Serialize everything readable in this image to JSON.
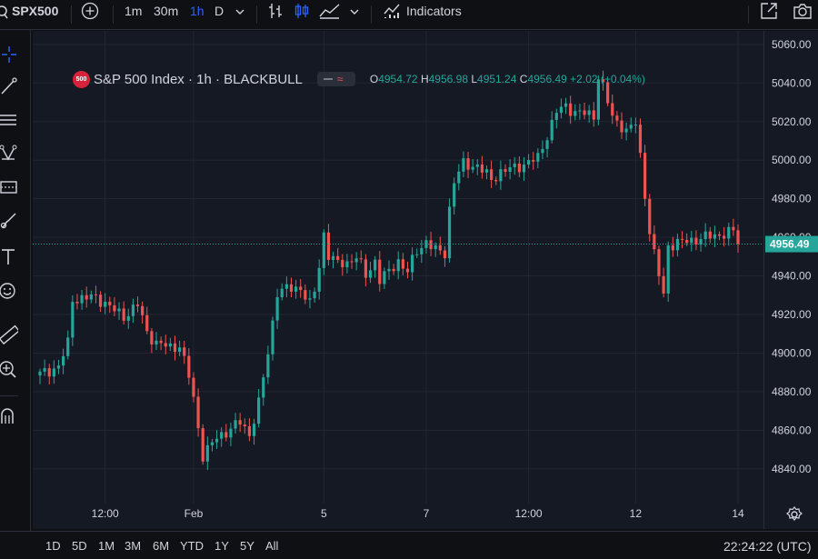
{
  "toolbar": {
    "symbol": "SPX500",
    "intervals": [
      "1m",
      "30m",
      "1h",
      "D"
    ],
    "active_interval": "1h",
    "indicators_label": "Indicators"
  },
  "legend": {
    "instrument": "S&P 500 Index · 1h · BLACKBULL",
    "badge": "500",
    "o_label": "O",
    "o_value": "4954.72",
    "h_label": "H",
    "h_value": "4956.98",
    "l_label": "L",
    "l_value": "4951.24",
    "c_label": "C",
    "c_value": "4956.49",
    "change": "+2.02 (+0.04%)"
  },
  "colors": {
    "up": "#26a69a",
    "down": "#ef5350",
    "background": "#151924",
    "grid": "#222633",
    "active_interval": "#2962ff",
    "last_price_bg": "#26a69a"
  },
  "range_buttons": [
    "1D",
    "5D",
    "1M",
    "3M",
    "6M",
    "YTD",
    "1Y",
    "5Y",
    "All"
  ],
  "clock": "22:24:22 (UTC)",
  "sidebar_icons": [
    "crosshair-icon",
    "trend-line-icon",
    "fib-icon",
    "pattern-icon",
    "forecast-icon",
    "brush-icon",
    "text-icon",
    "emoji-icon",
    "ruler-icon",
    "zoom-icon",
    "magnet-icon"
  ],
  "chart_data": {
    "type": "candlestick",
    "y_ticks": [
      "5060.00",
      "5040.00",
      "5020.00",
      "5000.00",
      "4980.00",
      "4960.00",
      "4940.00",
      "4920.00",
      "4900.00",
      "4880.00",
      "4860.00",
      "4840.00"
    ],
    "ylim": [
      4822,
      5067
    ],
    "x_ticks": [
      "12:00",
      "Feb",
      "5",
      "7",
      "12:00",
      "12",
      "14"
    ],
    "x_tick_bars": [
      14,
      33,
      61,
      83,
      105,
      128,
      150
    ],
    "n_bars": 151,
    "last_price": "4956.49",
    "keyframes": [
      [
        0,
        4889
      ],
      [
        4,
        4893
      ],
      [
        6,
        4905
      ],
      [
        7,
        4928
      ],
      [
        12,
        4929
      ],
      [
        14,
        4926
      ],
      [
        16,
        4922
      ],
      [
        18,
        4919
      ],
      [
        21,
        4925
      ],
      [
        23,
        4911
      ],
      [
        25,
        4905
      ],
      [
        28,
        4903
      ],
      [
        30,
        4904
      ],
      [
        32,
        4888
      ],
      [
        33,
        4876
      ],
      [
        35,
        4847
      ],
      [
        38,
        4856
      ],
      [
        41,
        4861
      ],
      [
        43,
        4864
      ],
      [
        45,
        4858
      ],
      [
        47,
        4874
      ],
      [
        49,
        4900
      ],
      [
        51,
        4932
      ],
      [
        53,
        4933
      ],
      [
        56,
        4934
      ],
      [
        58,
        4925
      ],
      [
        59,
        4932
      ],
      [
        60,
        4945
      ],
      [
        61,
        4962
      ],
      [
        62,
        4951
      ],
      [
        64,
        4946
      ],
      [
        66,
        4947
      ],
      [
        68,
        4950
      ],
      [
        70,
        4940
      ],
      [
        72,
        4948
      ],
      [
        73,
        4938
      ],
      [
        75,
        4942
      ],
      [
        77,
        4948
      ],
      [
        79,
        4942
      ],
      [
        81,
        4953
      ],
      [
        83,
        4958
      ],
      [
        85,
        4953
      ],
      [
        87,
        4952
      ],
      [
        88,
        4975
      ],
      [
        89,
        4989
      ],
      [
        91,
        4998
      ],
      [
        94,
        4997
      ],
      [
        97,
        4990
      ],
      [
        99,
        4994
      ],
      [
        102,
        4996
      ],
      [
        105,
        4999
      ],
      [
        107,
        5001
      ],
      [
        109,
        5013
      ],
      [
        111,
        5025
      ],
      [
        113,
        5028
      ],
      [
        115,
        5025
      ],
      [
        117,
        5024
      ],
      [
        119,
        5023
      ],
      [
        120,
        5044
      ],
      [
        121,
        5038
      ],
      [
        123,
        5022
      ],
      [
        125,
        5018
      ],
      [
        126,
        5015
      ],
      [
        128,
        5019
      ],
      [
        129,
        5002
      ],
      [
        131,
        4963
      ],
      [
        132,
        4951
      ],
      [
        134,
        4930
      ],
      [
        135,
        4956
      ]
    ]
  }
}
